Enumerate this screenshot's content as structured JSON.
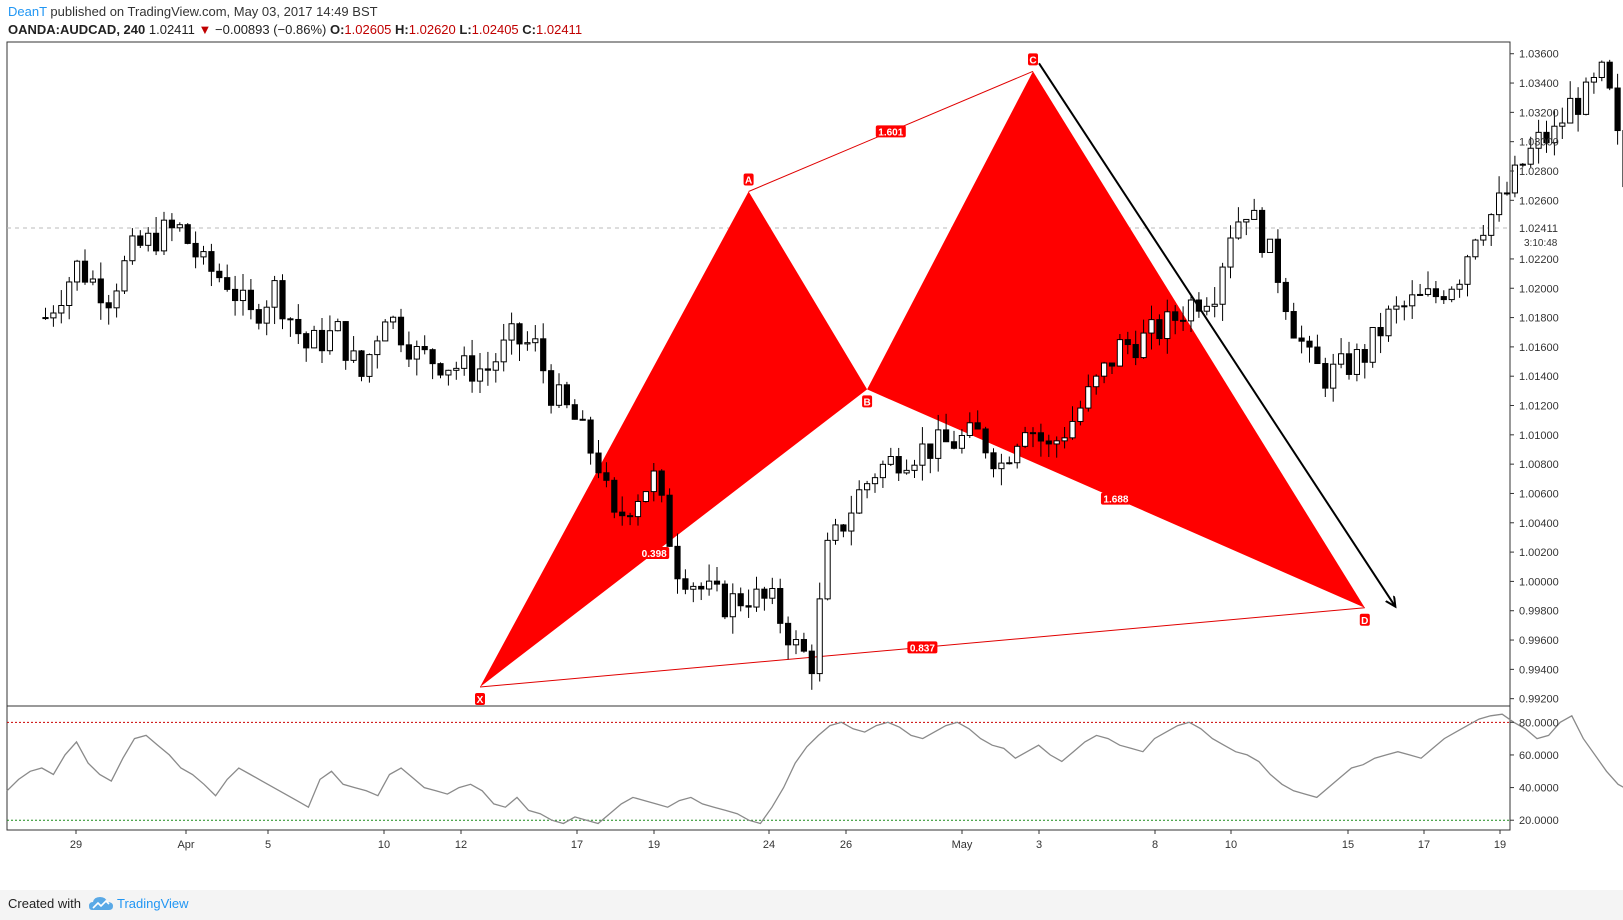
{
  "header": {
    "author": "DeanT",
    "published_text": "published on TradingView.com, May 03, 2017 14:49 BST",
    "symbol": "OANDA:AUDCAD, 240",
    "last": "1.02411",
    "change_arrow": "▼",
    "change": "−0.00893 (−0.86%)",
    "o_label": "O:",
    "o_value": "1.02605",
    "h_label": "H:",
    "h_value": "1.02620",
    "l_label": "L:",
    "l_value": "1.02405",
    "c_label": "C:",
    "c_value": "1.02411"
  },
  "footer": {
    "created_with": "Created with",
    "brand": "TradingView",
    "logo_icon": "tradingview-cloud-icon"
  },
  "colors": {
    "pattern_fill": "#ff0000",
    "pattern_line": "#e00000",
    "arrow": "#000000",
    "rsi_line": "#8a8a8a",
    "rsi_upper": "#cc0000",
    "rsi_lower": "#1a8a1a",
    "current_price_line": "#bbbbbb",
    "bull_candle": "#ffffff",
    "bear_candle": "#000000"
  },
  "chart_data": {
    "type": "candlestick",
    "price_axis": {
      "ticks": [
        "1.03600",
        "1.03400",
        "1.03200",
        "1.03000",
        "1.02800",
        "1.02600",
        "1.02200",
        "1.02000",
        "1.01800",
        "1.01600",
        "1.01400",
        "1.01200",
        "1.01000",
        "1.00800",
        "1.00600",
        "1.00400",
        "1.00200",
        "1.00000",
        "0.99800",
        "0.99600",
        "0.99400",
        "0.99200"
      ],
      "current_price": "1.02411",
      "countdown": "3:10:48",
      "ylim": [
        0.9915,
        1.0368
      ]
    },
    "time_axis": {
      "ticks": [
        "29",
        "Apr",
        "5",
        "10",
        "12",
        "17",
        "19",
        "24",
        "26",
        "May",
        "3",
        "8",
        "10",
        "15",
        "17",
        "19"
      ]
    },
    "pattern": {
      "name": "",
      "points": [
        {
          "label": "X",
          "bar": 0,
          "price": 0.9928
        },
        {
          "label": "A",
          "bar": 34,
          "price": 1.0266
        },
        {
          "label": "B",
          "bar": 49,
          "price": 1.0131
        },
        {
          "label": "C",
          "bar": 70,
          "price": 1.0348
        },
        {
          "label": "D",
          "bar": 112,
          "price": 0.9982
        }
      ],
      "ratios": [
        {
          "label": "0.398",
          "between": "X-B"
        },
        {
          "label": "1.601",
          "between": "A-C"
        },
        {
          "label": "1.688",
          "between": "B-D"
        },
        {
          "label": "0.837",
          "between": "X-D"
        }
      ]
    },
    "price_path": [
      [
        -55,
        1.018
      ],
      [
        -51,
        1.0215
      ],
      [
        -47,
        1.0195
      ],
      [
        -44,
        1.0225
      ],
      [
        -40,
        1.0238
      ],
      [
        -38,
        1.024
      ],
      [
        -35,
        1.0215
      ],
      [
        -32,
        1.0205
      ],
      [
        -29,
        1.018
      ],
      [
        -26,
        1.02
      ],
      [
        -22,
        1.016
      ],
      [
        -18,
        1.017
      ],
      [
        -15,
        1.014
      ],
      [
        -12,
        1.0185
      ],
      [
        -8,
        1.0155
      ],
      [
        -5,
        1.015
      ],
      [
        -2,
        1.0145
      ],
      [
        1,
        1.0145
      ],
      [
        4,
        1.0165
      ],
      [
        7,
        1.016
      ],
      [
        9,
        1.013
      ],
      [
        12,
        1.011
      ],
      [
        15,
        1.008
      ],
      [
        17,
        1.004
      ],
      [
        20,
        1.006
      ],
      [
        22,
        1.007
      ],
      [
        25,
        1.001
      ],
      [
        28,
        0.9995
      ],
      [
        31,
        0.9985
      ],
      [
        34,
        0.999
      ],
      [
        37,
        0.9985
      ],
      [
        40,
        0.9955
      ],
      [
        42,
        0.9945
      ],
      [
        44,
        1.002
      ],
      [
        46,
        1.004
      ],
      [
        48,
        1.006
      ],
      [
        50,
        1.0075
      ],
      [
        53,
        1.0085
      ],
      [
        56,
        1.009
      ],
      [
        60,
        1.0095
      ],
      [
        63,
        1.01
      ],
      [
        66,
        1.008
      ],
      [
        69,
        1.011
      ],
      [
        72,
        1.009
      ],
      [
        75,
        1.011
      ],
      [
        78,
        1.0135
      ],
      [
        81,
        1.016
      ],
      [
        84,
        1.0165
      ],
      [
        87,
        1.0175
      ],
      [
        90,
        1.019
      ],
      [
        93,
        1.02
      ],
      [
        95,
        1.024
      ],
      [
        97,
        1.0255
      ],
      [
        99,
        1.0235
      ],
      [
        101,
        1.021
      ],
      [
        103,
        1.0175
      ],
      [
        105,
        1.015
      ],
      [
        107,
        1.014
      ],
      [
        109,
        1.0145
      ],
      [
        112,
        1.0155
      ],
      [
        115,
        1.018
      ],
      [
        118,
        1.019
      ],
      [
        121,
        1.0195
      ],
      [
        124,
        1.021
      ],
      [
        126,
        1.024
      ],
      [
        128,
        1.025
      ],
      [
        130,
        1.0265
      ],
      [
        132,
        1.0285
      ],
      [
        134,
        1.03
      ],
      [
        136,
        1.0305
      ],
      [
        138,
        1.0325
      ],
      [
        140,
        1.033
      ],
      [
        142,
        1.0345
      ],
      [
        143,
        1.033
      ],
      [
        144,
        1.03
      ],
      [
        145,
        1.027
      ],
      [
        146,
        1.026
      ],
      [
        147,
        1.0241
      ]
    ],
    "rsi": {
      "upper_level": 80,
      "lower_level": 20,
      "ticks": [
        "80.0000",
        "60.0000",
        "40.0000",
        "20.0000"
      ],
      "ylim": [
        14,
        90
      ],
      "values": [
        38,
        45,
        50,
        52,
        48,
        60,
        68,
        55,
        48,
        44,
        58,
        70,
        72,
        66,
        60,
        52,
        48,
        42,
        35,
        45,
        52,
        48,
        44,
        40,
        36,
        32,
        28,
        45,
        50,
        42,
        40,
        38,
        35,
        48,
        52,
        46,
        40,
        38,
        36,
        40,
        42,
        38,
        30,
        28,
        34,
        26,
        24,
        20,
        18,
        22,
        20,
        18,
        24,
        30,
        34,
        32,
        30,
        28,
        32,
        34,
        30,
        28,
        26,
        24,
        20,
        18,
        28,
        40,
        55,
        65,
        72,
        78,
        80,
        76,
        74,
        78,
        80,
        77,
        72,
        70,
        74,
        78,
        80,
        76,
        70,
        66,
        64,
        58,
        62,
        66,
        60,
        56,
        62,
        68,
        72,
        70,
        66,
        64,
        62,
        70,
        74,
        78,
        80,
        76,
        70,
        66,
        62,
        60,
        56,
        48,
        42,
        38,
        36,
        34,
        40,
        46,
        52,
        54,
        58,
        60,
        62,
        60,
        58,
        64,
        70,
        74,
        78,
        82,
        84,
        85,
        80,
        76,
        70,
        72,
        80,
        84,
        70,
        60,
        50,
        42,
        38,
        35
      ]
    }
  }
}
